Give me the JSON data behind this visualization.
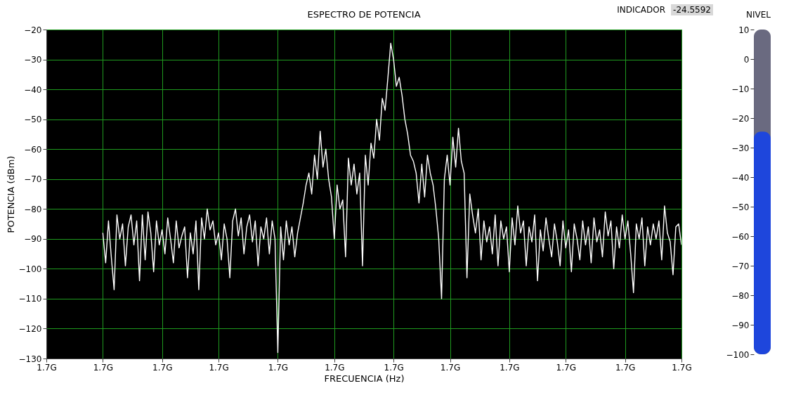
{
  "chart_data": [
    {
      "type": "line",
      "title": "ESPECTRO DE POTENCIA",
      "xlabel": "FRECUENCIA (Hz)",
      "ylabel": "POTENCIA (dBm)",
      "ylim": [
        -130,
        -20
      ],
      "yticks": [
        -20,
        -30,
        -40,
        -50,
        -60,
        -70,
        -80,
        -90,
        -100,
        -110,
        -120,
        -130
      ],
      "grid": true,
      "legend": false,
      "categories": [
        "1.7G",
        null,
        null,
        null,
        null,
        null,
        null,
        null,
        null,
        null,
        null,
        null,
        null,
        null,
        null,
        null,
        null,
        null,
        null,
        null,
        "1.7G",
        null,
        null,
        null,
        null,
        null,
        null,
        null,
        null,
        null,
        null,
        null,
        null,
        null,
        null,
        null,
        null,
        null,
        null,
        null,
        null,
        "1.7G",
        null,
        null,
        null,
        null,
        null,
        null,
        null,
        null,
        null,
        null,
        null,
        null,
        null,
        null,
        null,
        null,
        null,
        null,
        null,
        "1.7G",
        null,
        null,
        null,
        null,
        null,
        null,
        null,
        null,
        null,
        null,
        null,
        null,
        null,
        null,
        null,
        null,
        null,
        null,
        null,
        null,
        "1.7G",
        null,
        null,
        null,
        null,
        null,
        null,
        null,
        null,
        null,
        null,
        null,
        null,
        null,
        null,
        null,
        null,
        null,
        null,
        null,
        "1.7G",
        null,
        null,
        null,
        null,
        null,
        null,
        null,
        null,
        null,
        null,
        null,
        null,
        null,
        null,
        null,
        null,
        null,
        null,
        null,
        null,
        "1.7G",
        null,
        null,
        null,
        null,
        null,
        null,
        null,
        null,
        null,
        null,
        null,
        null,
        null,
        null,
        null,
        null,
        null,
        null,
        null,
        "1.7G",
        null,
        null,
        null,
        null,
        null,
        null,
        null,
        null,
        null,
        null,
        null,
        null,
        null,
        null,
        null,
        null,
        null,
        null,
        null,
        null,
        "1.7G",
        null,
        null,
        null,
        null,
        null,
        null,
        null,
        null,
        null,
        null,
        null,
        null,
        null,
        null,
        null,
        null,
        null,
        null,
        null,
        "1.7G",
        null,
        null,
        null,
        null,
        null,
        null,
        null,
        null,
        null,
        null,
        null,
        null,
        null,
        null,
        null,
        null,
        null,
        null,
        null,
        null,
        "1.7G",
        null,
        null,
        null,
        null,
        null,
        null,
        null,
        null,
        null,
        null,
        null,
        null,
        null,
        null,
        null,
        null,
        null,
        null,
        null,
        "1.7G"
      ],
      "series": [
        {
          "color": "#ffffff",
          "values": [
            null,
            null,
            null,
            null,
            null,
            null,
            null,
            null,
            null,
            null,
            null,
            null,
            null,
            null,
            null,
            null,
            null,
            null,
            null,
            null,
            -88,
            -98,
            -84,
            -96,
            -107,
            -82,
            -90,
            -85,
            -99,
            -86,
            -82,
            -92,
            -84,
            -104,
            -82,
            -97,
            -81,
            -88,
            -101,
            -84,
            -92,
            -87,
            -95,
            -83,
            -90,
            -98,
            -84,
            -93,
            -89,
            -86,
            -103,
            -88,
            -95,
            -84,
            -107,
            -83,
            -90,
            -80,
            -87,
            -84,
            -92,
            -88,
            -97,
            -85,
            -90,
            -103,
            -84,
            -80,
            -89,
            -83,
            -95,
            -86,
            -82,
            -91,
            -84,
            -99,
            -86,
            -90,
            -83,
            -95,
            -84,
            -90,
            -128,
            -86,
            -97,
            -84,
            -92,
            -86,
            -96,
            -88,
            -83,
            -78,
            -72,
            -68,
            -75,
            -62,
            -70,
            -54,
            -66,
            -60,
            -70,
            -76,
            -90,
            -72,
            -80,
            -77,
            -96,
            -63,
            -72,
            -65,
            -75,
            -68,
            -99,
            -62,
            -72,
            -58,
            -63,
            -50,
            -57,
            -43,
            -47,
            -36,
            -24.6,
            -30,
            -39,
            -36,
            -42,
            -50,
            -55,
            -62,
            -64,
            -68,
            -78,
            -65,
            -76,
            -62,
            -68,
            -72,
            -80,
            -90,
            -110,
            -70,
            -62,
            -72,
            -56,
            -66,
            -53,
            -64,
            -68,
            -103,
            -75,
            -82,
            -88,
            -80,
            -97,
            -84,
            -91,
            -86,
            -95,
            -82,
            -99,
            -84,
            -90,
            -86,
            -101,
            -83,
            -92,
            -79,
            -88,
            -84,
            -99,
            -86,
            -91,
            -82,
            -104,
            -87,
            -94,
            -83,
            -90,
            -96,
            -85,
            -91,
            -99,
            -84,
            -93,
            -87,
            -101,
            -85,
            -90,
            -97,
            -84,
            -92,
            -86,
            -98,
            -83,
            -91,
            -87,
            -96,
            -81,
            -89,
            -84,
            -100,
            -86,
            -93,
            -82,
            -90,
            -84,
            -95,
            -108,
            -85,
            -90,
            -83,
            -99,
            -86,
            -92,
            -85,
            -90,
            -84,
            -97,
            -79,
            -88,
            -91,
            -102,
            -86,
            -85,
            -92
          ]
        }
      ]
    },
    {
      "type": "bar",
      "title": "NIVEL",
      "categories": [
        null
      ],
      "base": [
        -100
      ],
      "values": [
        75.4
      ],
      "colors": [
        "#1e46dc"
      ],
      "annotations": [
        "INDICADOR",
        "-24.5592"
      ],
      "ylim": [
        -100,
        10
      ],
      "yticks": [
        10,
        0,
        -10,
        -20,
        -30,
        -40,
        -50,
        -60,
        -70,
        -80,
        -90,
        -100
      ]
    }
  ]
}
